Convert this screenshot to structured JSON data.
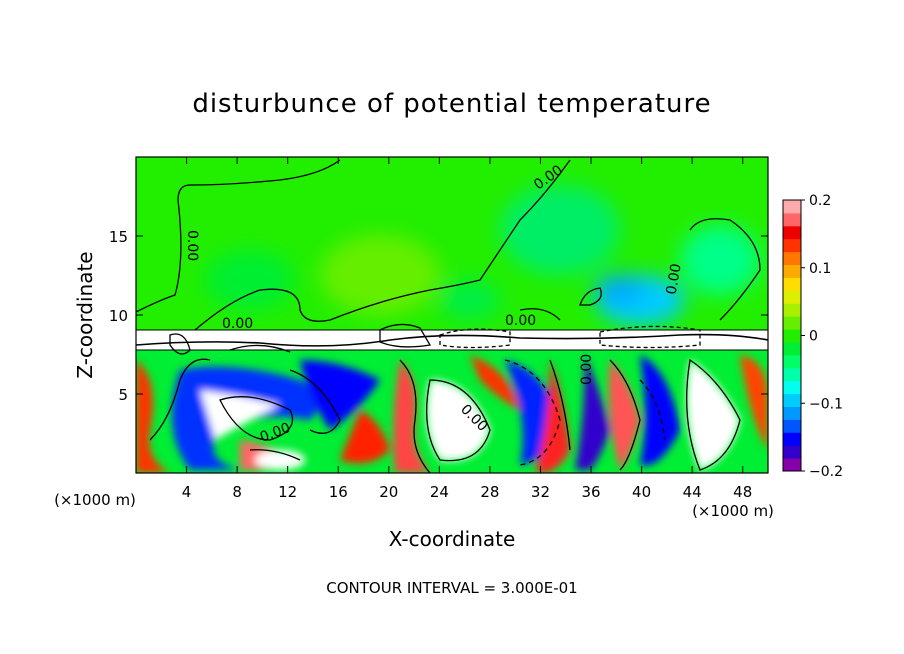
{
  "chart_data": {
    "type": "heatmap",
    "title": "disturbunce of potential temperature",
    "xlabel": "X-coordinate",
    "ylabel": "Z-coordinate",
    "x_unit_label": "(×1000 m)",
    "x_unit_label_right": "(×1000 m)",
    "xlim": [
      0,
      50
    ],
    "ylim": [
      0,
      20
    ],
    "x_ticks": [
      4,
      8,
      12,
      16,
      20,
      24,
      28,
      32,
      36,
      40,
      44,
      48
    ],
    "y_ticks": [
      5,
      10,
      15
    ],
    "colorbar": {
      "min": -0.2,
      "max": 0.2,
      "ticks": [
        -0.2,
        -0.1,
        0,
        0.1,
        0.2
      ],
      "tick_labels": [
        "−0.2",
        "−0.1",
        "0",
        "0.1",
        "0.2"
      ],
      "colors": [
        "#8800aa",
        "#3300cc",
        "#0000ff",
        "#0055ff",
        "#0099ff",
        "#00ccff",
        "#00ffee",
        "#00ffaa",
        "#00ff66",
        "#00ee33",
        "#22ee00",
        "#66ee00",
        "#aaee00",
        "#ddee00",
        "#ffdd00",
        "#ffaa00",
        "#ff7700",
        "#ff3300",
        "#ee0000",
        "#ff6666",
        "#ffaaaa"
      ]
    },
    "contour_interval_text": "CONTOUR INTERVAL = 3.000E-01",
    "contour_labels": [
      "0.00",
      "0.00",
      "0.00",
      "0.00",
      "0.00",
      "0.00",
      "0.00",
      "0.00"
    ],
    "field_description": {
      "upper_layer_z_range": [
        9.5,
        20
      ],
      "upper_layer_value": 0.0,
      "interface_z": 8.8,
      "lower_layer_z_range": [
        0,
        8
      ]
    }
  }
}
